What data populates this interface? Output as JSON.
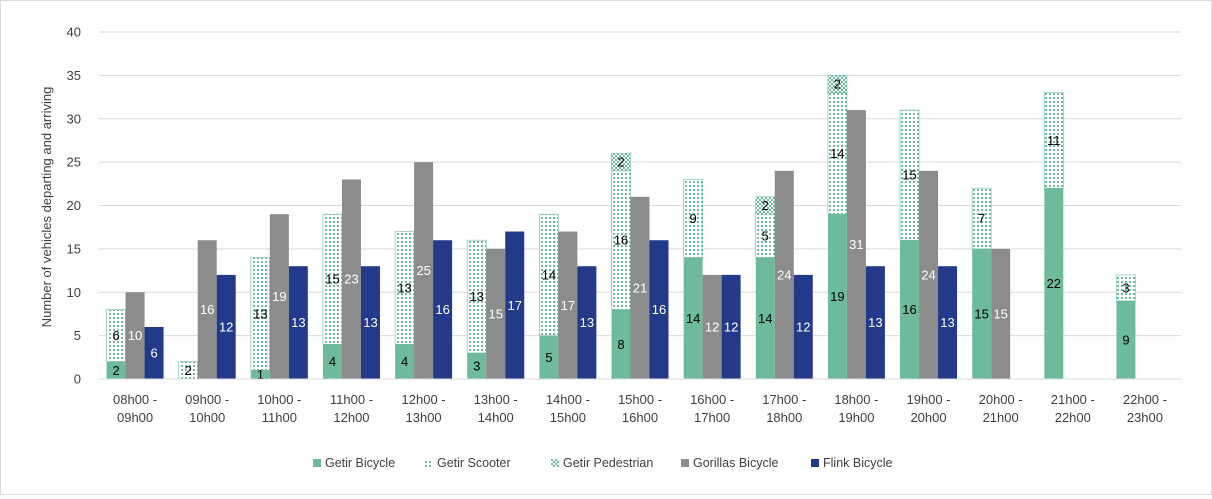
{
  "colors": {
    "getir": "#6dbb9b",
    "gorillas": "#8c8c8c",
    "flink": "#223a8a",
    "grid": "#d9d9d9"
  },
  "chart_data": {
    "type": "bar",
    "ylabel": "Number of vehicles departing and arriving",
    "ylim": [
      0,
      40
    ],
    "yticks": [
      0,
      5,
      10,
      15,
      20,
      25,
      30,
      35,
      40
    ],
    "grid": true,
    "legend_position": "bottom",
    "categories": [
      [
        "08h00 -",
        "09h00"
      ],
      [
        "09h00 -",
        "10h00"
      ],
      [
        "10h00 -",
        "11h00"
      ],
      [
        "11h00 -",
        "12h00"
      ],
      [
        "12h00 -",
        "13h00"
      ],
      [
        "13h00 -",
        "14h00"
      ],
      [
        "14h00 -",
        "15h00"
      ],
      [
        "15h00 -",
        "16h00"
      ],
      [
        "16h00 -",
        "17h00"
      ],
      [
        "17h00 -",
        "18h00"
      ],
      [
        "18h00 -",
        "19h00"
      ],
      [
        "19h00 -",
        "20h00"
      ],
      [
        "20h00 -",
        "21h00"
      ],
      [
        "21h00 -",
        "22h00"
      ],
      [
        "22h00 -",
        "23h00"
      ]
    ],
    "series": [
      {
        "name": "Getir Bicycle",
        "pattern": "solid",
        "color": "#6dbb9b",
        "stack": "getir",
        "values": [
          2,
          0,
          1,
          4,
          4,
          3,
          5,
          8,
          14,
          14,
          19,
          16,
          15,
          22,
          9
        ]
      },
      {
        "name": "Getir Scooter",
        "pattern": "dots",
        "color": "#6dbb9b",
        "stack": "getir",
        "values": [
          6,
          2,
          13,
          15,
          13,
          13,
          14,
          16,
          9,
          5,
          14,
          15,
          7,
          11,
          3
        ]
      },
      {
        "name": "Getir Pedestrian",
        "pattern": "checker",
        "color": "#6dbb9b",
        "stack": "getir",
        "values": [
          0,
          0,
          0,
          0,
          0,
          0,
          0,
          2,
          0,
          2,
          2,
          0,
          0,
          0,
          0
        ]
      },
      {
        "name": "Gorillas Bicycle",
        "pattern": "solid",
        "color": "#8c8c8c",
        "stack": "gorillas",
        "values": [
          10,
          16,
          19,
          23,
          25,
          15,
          17,
          21,
          12,
          24,
          31,
          24,
          15,
          0,
          0
        ]
      },
      {
        "name": "Flink Bicycle",
        "pattern": "solid",
        "color": "#223a8a",
        "stack": "flink",
        "values": [
          6,
          12,
          13,
          13,
          16,
          17,
          13,
          16,
          12,
          12,
          13,
          13,
          0,
          0,
          0
        ]
      }
    ]
  }
}
